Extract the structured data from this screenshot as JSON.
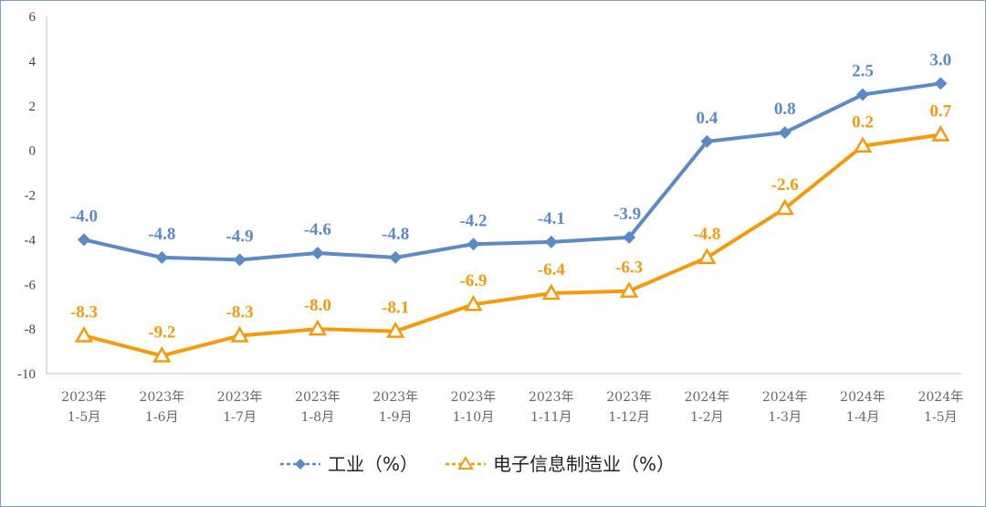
{
  "chart_data": {
    "type": "line",
    "categories": [
      [
        "2023年",
        "1-5月"
      ],
      [
        "2023年",
        "1-6月"
      ],
      [
        "2023年",
        "1-7月"
      ],
      [
        "2023年",
        "1-8月"
      ],
      [
        "2023年",
        "1-9月"
      ],
      [
        "2023年",
        "1-10月"
      ],
      [
        "2023年",
        "1-11月"
      ],
      [
        "2023年",
        "1-12月"
      ],
      [
        "2024年",
        "1-2月"
      ],
      [
        "2024年",
        "1-3月"
      ],
      [
        "2024年",
        "1-4月"
      ],
      [
        "2024年",
        "1-5月"
      ]
    ],
    "series": [
      {
        "name": "工业（%）",
        "color": "#5b8ac6",
        "marker": "diamond",
        "values": [
          -4.0,
          -4.8,
          -4.9,
          -4.6,
          -4.8,
          -4.2,
          -4.1,
          -3.9,
          0.4,
          0.8,
          2.5,
          3.0
        ],
        "labels": [
          "-4.0",
          "-4.8",
          "-4.9",
          "-4.6",
          "-4.8",
          "-4.2",
          "-4.1",
          "-3.9",
          "0.4",
          "0.8",
          "2.5",
          "3.0"
        ]
      },
      {
        "name": "电子信息制造业（%）",
        "color": "#f59a0c",
        "marker": "triangle",
        "values": [
          -8.3,
          -9.2,
          -8.3,
          -8.0,
          -8.1,
          -6.9,
          -6.4,
          -6.3,
          -4.8,
          -2.6,
          0.2,
          0.7
        ],
        "labels": [
          "-8.3",
          "-9.2",
          "-8.3",
          "-8.0",
          "-8.1",
          "-6.9",
          "-6.4",
          "-6.3",
          "-4.8",
          "-2.6",
          "0.2",
          "0.7"
        ]
      }
    ],
    "yticks": [
      "6",
      "4",
      "2",
      "0",
      "-2",
      "-4",
      "-6",
      "-8",
      "-10"
    ],
    "ylim": [
      -10,
      6
    ],
    "grid": false,
    "legend_position": "bottom"
  }
}
